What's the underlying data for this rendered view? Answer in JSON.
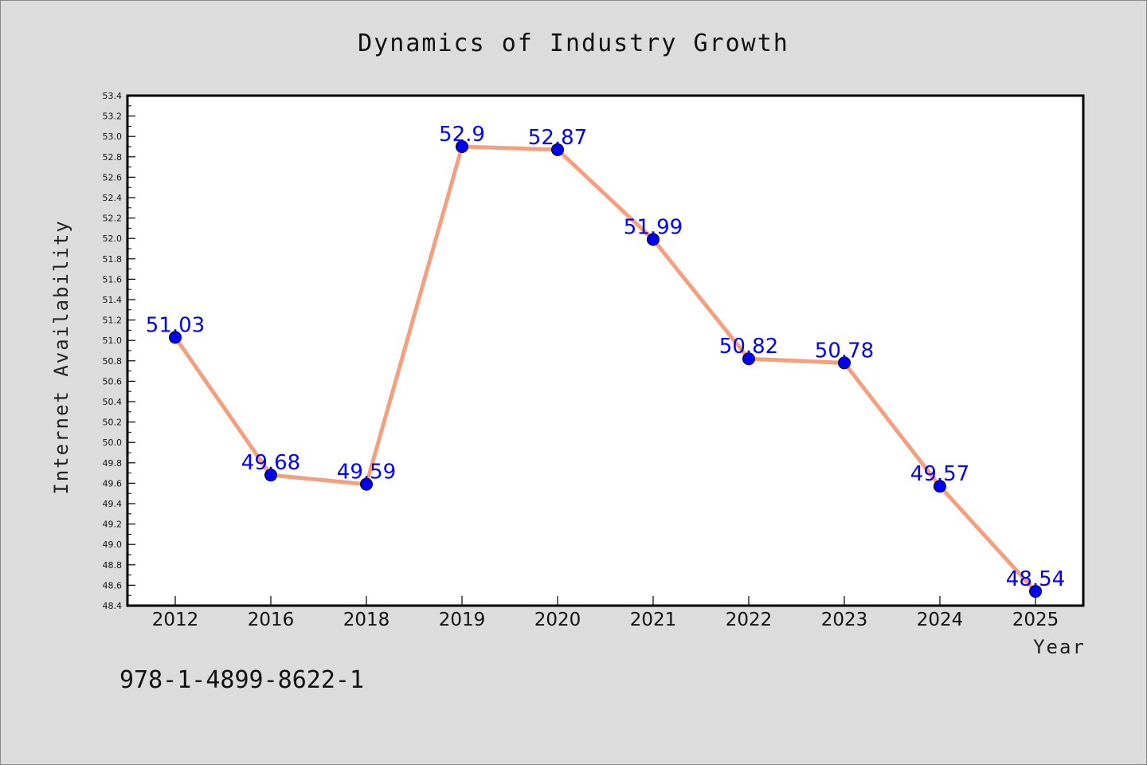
{
  "chart_data": {
    "type": "line",
    "title": "Dynamics of Industry Growth",
    "xlabel": "Year",
    "ylabel": "Internet Availability",
    "categories": [
      "2012",
      "2016",
      "2018",
      "2019",
      "2020",
      "2021",
      "2022",
      "2023",
      "2024",
      "2025"
    ],
    "series": [
      {
        "values": [
          51.03,
          49.68,
          49.59,
          52.9,
          52.87,
          51.99,
          50.82,
          50.78,
          49.57,
          48.54
        ]
      }
    ],
    "data_labels": [
      "51.03",
      "49.68",
      "49.59",
      "52.9",
      "52.87",
      "51.99",
      "50.82",
      "50.78",
      "49.57",
      "48.54"
    ],
    "ylim": [
      48.4,
      53.4
    ],
    "yticks": [
      "48.4",
      "48.6",
      "48.8",
      "49.0",
      "49.2",
      "49.4",
      "49.6",
      "49.8",
      "50.0",
      "50.2",
      "50.4",
      "50.6",
      "50.8",
      "51.0",
      "51.2",
      "51.4",
      "51.6",
      "51.8",
      "52.0",
      "52.2",
      "52.4",
      "52.6",
      "52.8",
      "53.0",
      "53.2",
      "53.4"
    ],
    "grid": false,
    "line_color": "#f4a07e",
    "marker_color": "#0000ee",
    "label_color": "#0000ff"
  },
  "footer": {
    "identifier": "978-1-4899-8622-1"
  }
}
